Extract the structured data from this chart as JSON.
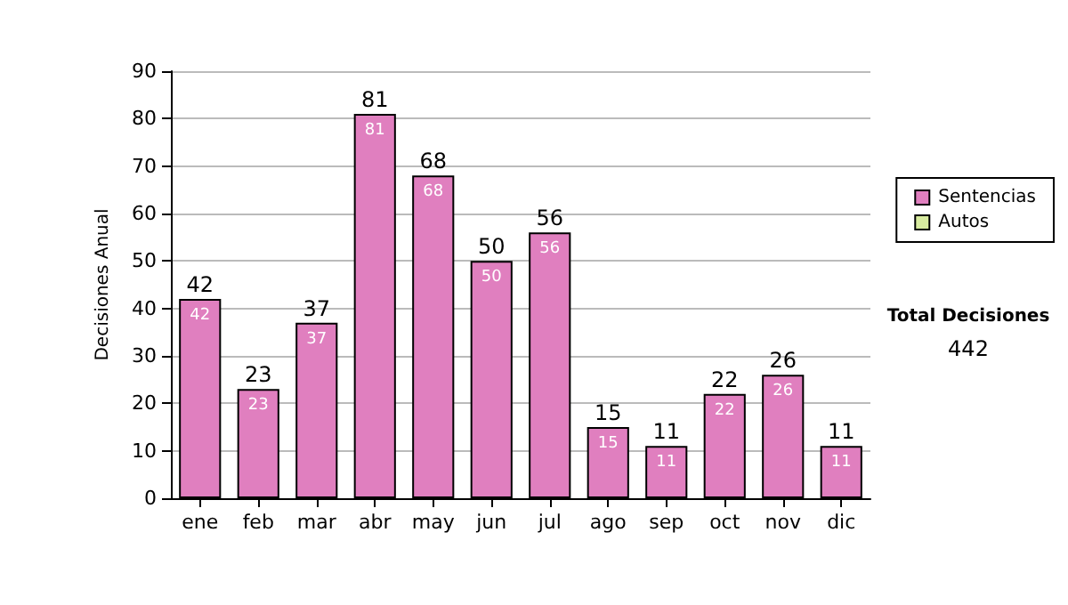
{
  "chart_data": {
    "type": "bar",
    "stacked": true,
    "ylabel": "Decisiones Anual",
    "categories": [
      "ene",
      "feb",
      "mar",
      "abr",
      "may",
      "jun",
      "jul",
      "ago",
      "sep",
      "oct",
      "nov",
      "dic"
    ],
    "series": [
      {
        "name": "Sentencias",
        "color": "#e07fbf",
        "values": [
          42,
          23,
          37,
          81,
          68,
          50,
          56,
          15,
          11,
          22,
          26,
          11
        ],
        "value_labels": [
          "42",
          "23",
          "37",
          "81",
          "68",
          "50",
          "56",
          "15",
          "11",
          "22",
          "26",
          "11"
        ]
      },
      {
        "name": "Autos",
        "color": "#d8eca0",
        "values": [
          0,
          0,
          0,
          0,
          0,
          0,
          0,
          0,
          0,
          0,
          0,
          0
        ]
      }
    ],
    "totals": [
      "42",
      "23",
      "37",
      "81",
      "68",
      "50",
      "56",
      "15",
      "11",
      "22",
      "26",
      "11"
    ],
    "ylim": [
      0,
      90
    ],
    "yticks": [
      0,
      10,
      20,
      30,
      40,
      50,
      60,
      70,
      80,
      90
    ],
    "grid": "y",
    "legend": "right",
    "annotations": [
      "Total Decisiones",
      "442"
    ]
  }
}
